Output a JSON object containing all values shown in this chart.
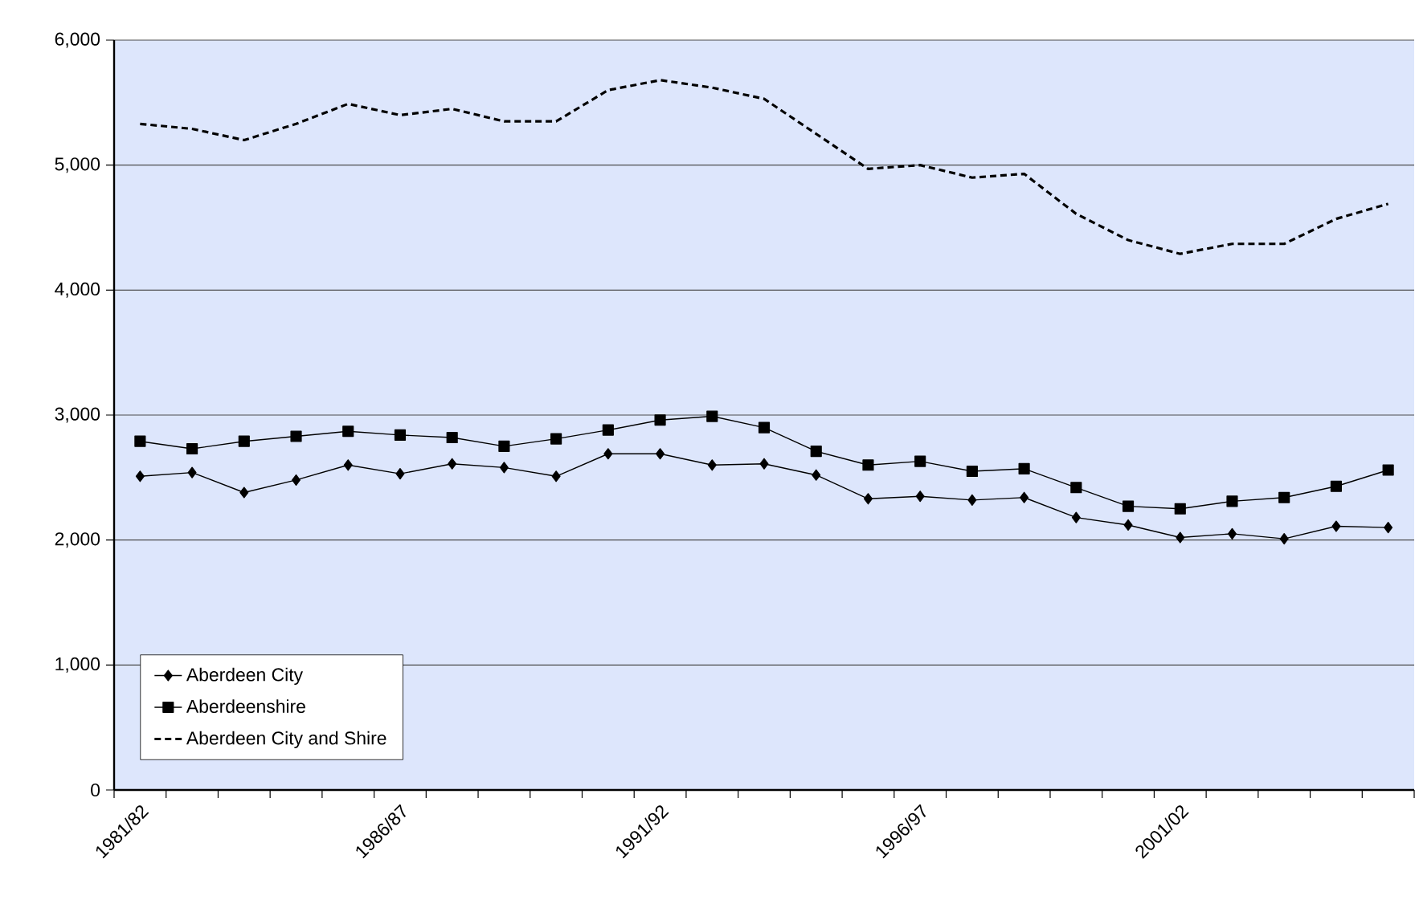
{
  "chart_data": {
    "type": "line",
    "categories": [
      "1981/82",
      null,
      null,
      null,
      null,
      "1986/87",
      null,
      null,
      null,
      null,
      "1991/92",
      null,
      null,
      null,
      null,
      "1996/97",
      null,
      null,
      null,
      null,
      "2001/02",
      null,
      null,
      null,
      null
    ],
    "series": [
      {
        "name": "Aberdeen City",
        "color": "#000000",
        "marker": "diamond",
        "line_style": "solid",
        "values": [
          2510,
          2540,
          2380,
          2480,
          2600,
          2530,
          2610,
          2580,
          2510,
          2690,
          2690,
          2600,
          2610,
          2520,
          2330,
          2350,
          2320,
          2340,
          2180,
          2120,
          2020,
          2050,
          2010,
          2110,
          2100
        ]
      },
      {
        "name": "Aberdeenshire",
        "color": "#000000",
        "marker": "square",
        "line_style": "solid",
        "values": [
          2790,
          2730,
          2790,
          2830,
          2870,
          2840,
          2820,
          2750,
          2810,
          2880,
          2960,
          2990,
          2900,
          2710,
          2600,
          2630,
          2550,
          2570,
          2420,
          2270,
          2250,
          2310,
          2340,
          2430,
          2560
        ]
      },
      {
        "name": "Aberdeen City and Shire",
        "color": "#000000",
        "marker": "none",
        "line_style": "dashed",
        "values": [
          5330,
          5290,
          5200,
          5330,
          5490,
          5400,
          5450,
          5350,
          5350,
          5600,
          5680,
          5620,
          5530,
          5250,
          4970,
          5000,
          4900,
          4930,
          4610,
          4400,
          4290,
          4370,
          4370,
          4570,
          4690
        ]
      }
    ],
    "ylim": [
      0,
      6000
    ],
    "yticks": [
      0,
      {
        "value": 1000,
        "label": "1,000"
      },
      {
        "value": 2000,
        "label": "2,000"
      },
      {
        "value": 3000,
        "label": "3,000"
      },
      {
        "value": 4000,
        "label": "4,000"
      },
      {
        "value": 5000,
        "label": "5,000"
      },
      {
        "value": 6000,
        "label": "6,000"
      }
    ],
    "grid": "y",
    "legend": "bottom left"
  }
}
